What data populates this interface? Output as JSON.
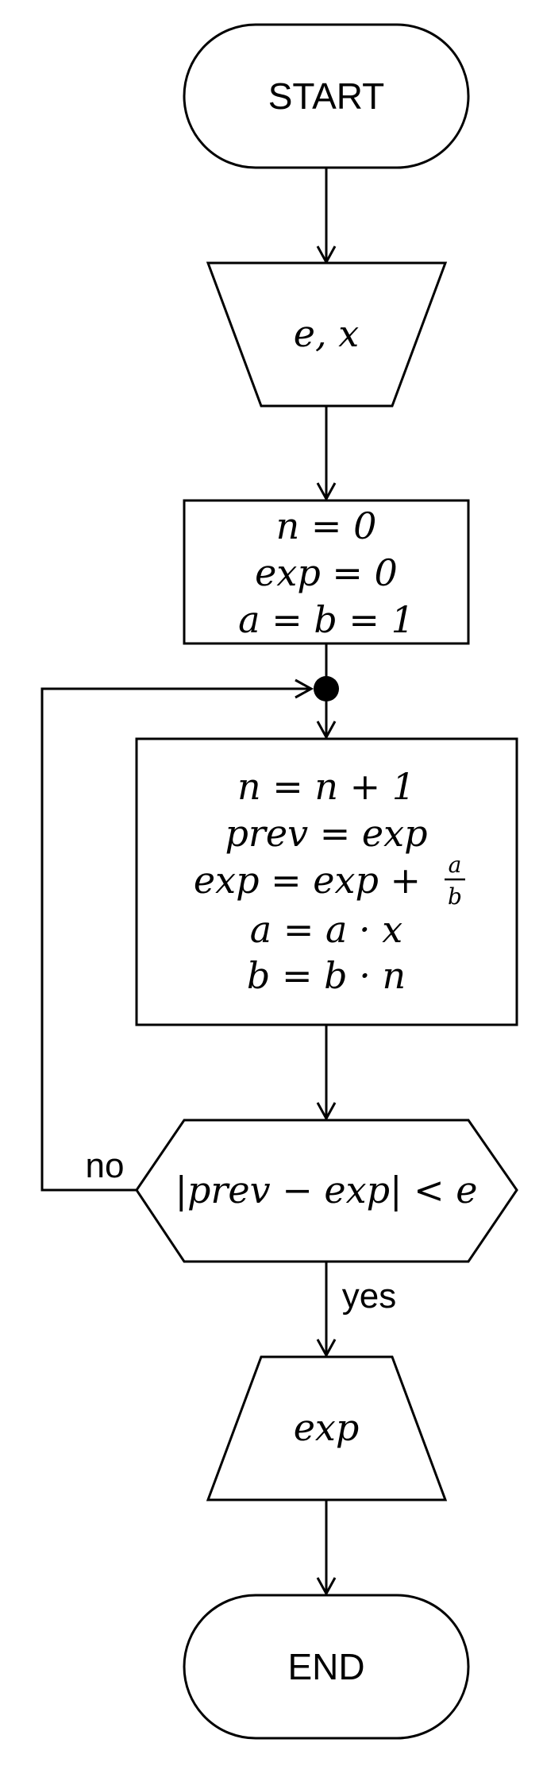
{
  "nodes": {
    "start": {
      "label": "START"
    },
    "input": {
      "label": "e, x"
    },
    "init": {
      "lines": [
        "n = 0",
        "exp = 0",
        "a = b = 1"
      ]
    },
    "loop_body": {
      "line1": "n = n + 1",
      "line2": "prev = exp",
      "line3_prefix": "exp = exp +",
      "fraction_numerator": "a",
      "fraction_denominator": "b",
      "line4": "a = a · x",
      "line5": "b = b · n"
    },
    "decision": {
      "label": "|prev − exp| < e"
    },
    "output": {
      "label": "exp"
    },
    "end": {
      "label": "END"
    }
  },
  "edges": {
    "no_label": "no",
    "yes_label": "yes"
  }
}
